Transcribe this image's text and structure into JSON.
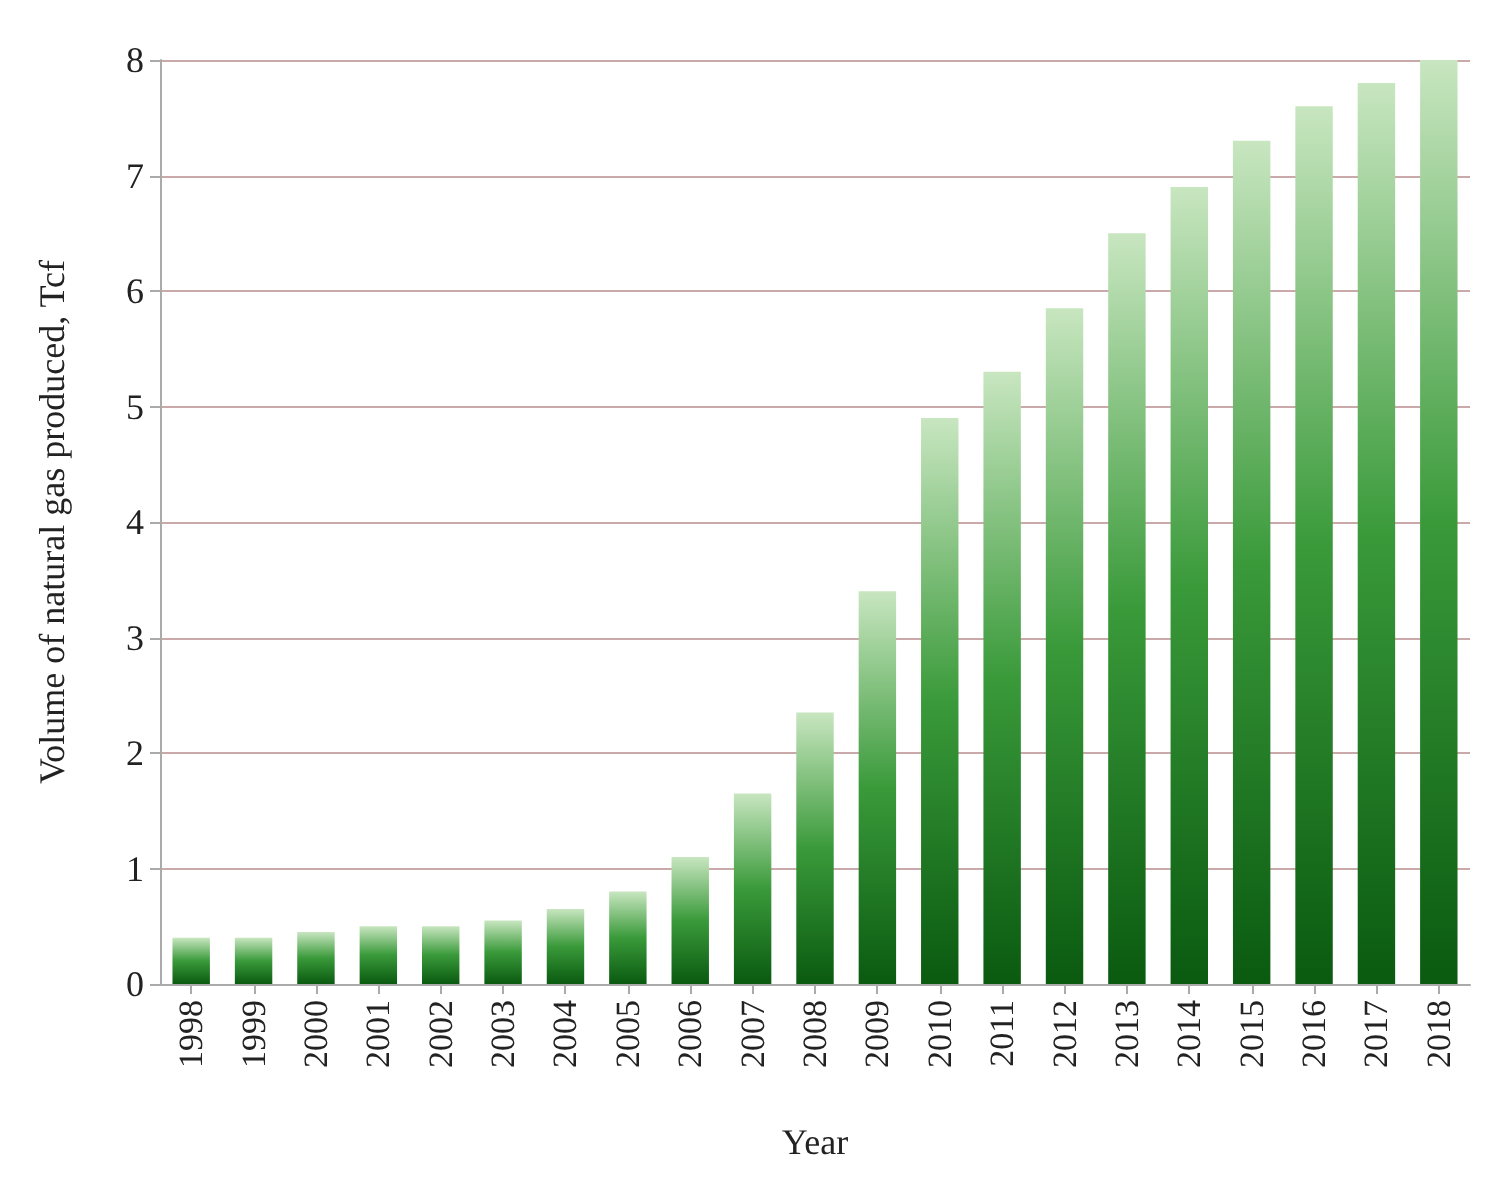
{
  "chart_data": {
    "type": "bar",
    "categories": [
      "1998",
      "1999",
      "2000",
      "2001",
      "2002",
      "2003",
      "2004",
      "2005",
      "2006",
      "2007",
      "2008",
      "2009",
      "2010",
      "2011",
      "2012",
      "2013",
      "2014",
      "2015",
      "2016",
      "2017",
      "2018"
    ],
    "values": [
      0.4,
      0.4,
      0.45,
      0.5,
      0.5,
      0.55,
      0.65,
      0.8,
      1.1,
      1.65,
      2.35,
      3.4,
      4.9,
      5.3,
      5.85,
      6.5,
      6.9,
      7.3,
      7.6,
      7.8,
      8.0
    ],
    "color": "#3a9a3a",
    "xlabel": "Year",
    "ylabel": "Volume of natural gas produced, Tcf",
    "ylim": [
      0,
      8
    ],
    "yticks": [
      0,
      1,
      2,
      3,
      4,
      5,
      6,
      7,
      8
    ],
    "grid": true
  }
}
